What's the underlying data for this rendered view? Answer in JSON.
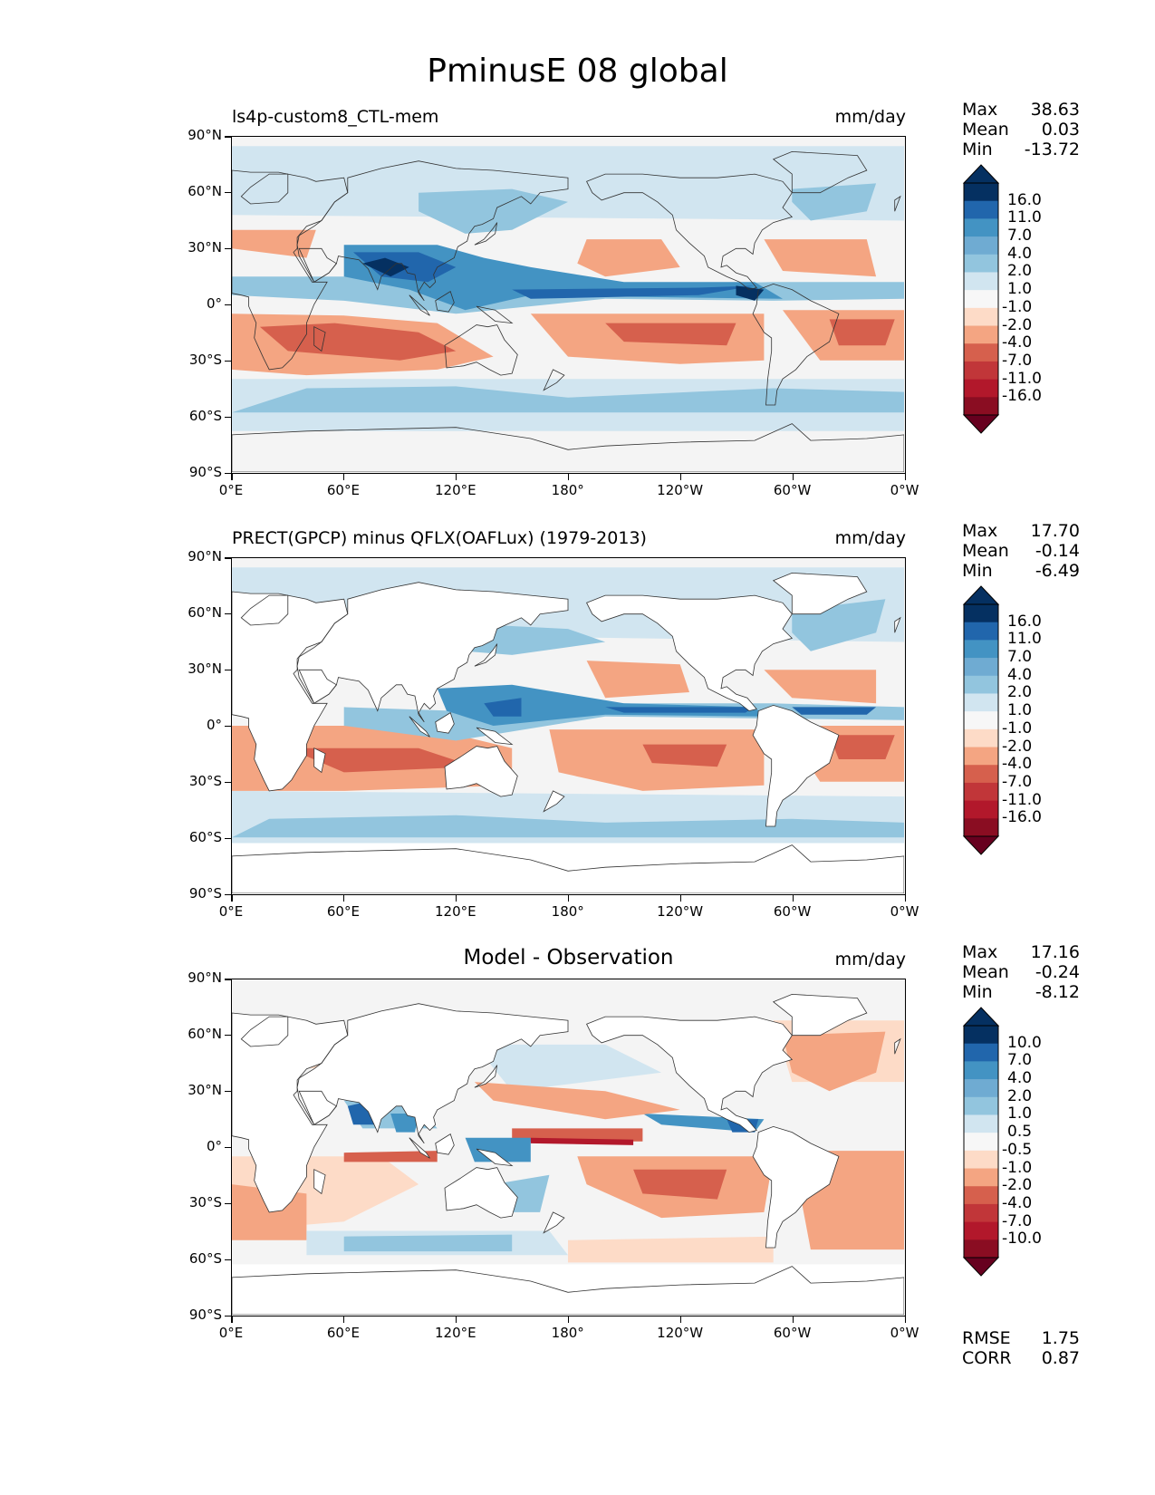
{
  "title": "PminusE 08 global",
  "colors": {
    "scale": [
      "#67001f",
      "#b2182b",
      "#d6604d",
      "#f4a582",
      "#fddbc7",
      "#f7f7f7",
      "#d1e5f0",
      "#92c5de",
      "#4393c3",
      "#2166ac",
      "#053061"
    ],
    "land": "#ffffff",
    "coast": "#333333"
  },
  "y_ticks": [
    "90°N",
    "60°N",
    "30°N",
    "0°",
    "30°S",
    "60°S",
    "90°S"
  ],
  "x_ticks": [
    "0°E",
    "60°E",
    "120°E",
    "180°",
    "120°W",
    "60°W",
    "0°W"
  ],
  "panels": [
    {
      "id": "model",
      "title_left": "ls4p-custom8_CTL-mem",
      "title_center": "",
      "units": "mm/day",
      "stats": [
        {
          "label": "Max",
          "value": "38.63"
        },
        {
          "label": "Mean",
          "value": "0.03"
        },
        {
          "label": "Min",
          "value": "-13.72"
        }
      ],
      "colorbar": [
        "16.0",
        "11.0",
        "7.0",
        "4.0",
        "2.0",
        "1.0",
        "-1.0",
        "-2.0",
        "-4.0",
        "-7.0",
        "-11.0",
        "-16.0"
      ]
    },
    {
      "id": "obs",
      "title_left": "PRECT(GPCP) minus QFLX(OAFLux) (1979-2013)",
      "title_center": "",
      "units": "mm/day",
      "stats": [
        {
          "label": "Max",
          "value": "17.70"
        },
        {
          "label": "Mean",
          "value": "-0.14"
        },
        {
          "label": "Min",
          "value": "-6.49"
        }
      ],
      "colorbar": [
        "16.0",
        "11.0",
        "7.0",
        "4.0",
        "2.0",
        "1.0",
        "-1.0",
        "-2.0",
        "-4.0",
        "-7.0",
        "-11.0",
        "-16.0"
      ]
    },
    {
      "id": "diff",
      "title_left": "",
      "title_center": "Model - Observation",
      "units": "mm/day",
      "stats": [
        {
          "label": "Max",
          "value": "17.16"
        },
        {
          "label": "Mean",
          "value": "-0.24"
        },
        {
          "label": "Min",
          "value": "-8.12"
        }
      ],
      "colorbar": [
        "10.0",
        "7.0",
        "4.0",
        "2.0",
        "1.0",
        "0.5",
        "-0.5",
        "-1.0",
        "-2.0",
        "-4.0",
        "-7.0",
        "-10.0"
      ],
      "metrics": [
        {
          "label": "RMSE",
          "value": "1.75"
        },
        {
          "label": "CORR",
          "value": "0.87"
        }
      ]
    }
  ]
}
